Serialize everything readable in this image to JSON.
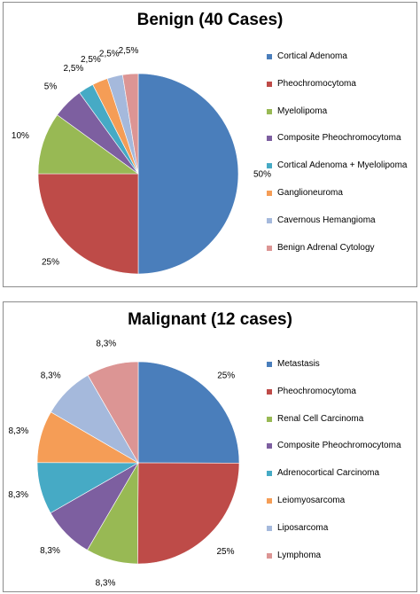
{
  "colors": {
    "blue": "#4a7ebb",
    "red": "#be4b48",
    "green": "#98b954",
    "purple": "#7d5fa0",
    "teal": "#46aac5",
    "orange": "#f59d56",
    "lightblue": "#a5b9dc",
    "pink": "#dc9594"
  },
  "chart_data": [
    {
      "type": "pie",
      "title": "Benign (40 Cases)",
      "legend_position": "right",
      "categories": [
        "Cortical Adenoma",
        "Pheochromocytoma",
        "Myelolipoma",
        "Composite Pheochromocytoma",
        "Cortical Adenoma + Myelolipoma",
        "Ganglioneuroma",
        "Cavernous Hemangioma",
        "Benign Adrenal Cytology"
      ],
      "values": [
        50,
        25,
        10,
        5,
        2.5,
        2.5,
        2.5,
        2.5
      ],
      "labels": [
        "50%",
        "25%",
        "10%",
        "5%",
        "2,5%",
        "2,5%",
        "2,5%",
        "2,5%"
      ],
      "colors": [
        "#4a7ebb",
        "#be4b48",
        "#98b954",
        "#7d5fa0",
        "#46aac5",
        "#f59d56",
        "#a5b9dc",
        "#dc9594"
      ]
    },
    {
      "type": "pie",
      "title": "Malignant (12 cases)",
      "legend_position": "right",
      "categories": [
        "Metastasis",
        "Pheochromocytoma",
        "Renal Cell Carcinoma",
        "Composite Pheochromocytoma",
        "Adrenocortical Carcinoma",
        "Leiomyosarcoma",
        "Liposarcoma",
        "Lymphoma"
      ],
      "values": [
        25,
        25,
        8.3,
        8.3,
        8.3,
        8.3,
        8.3,
        8.3
      ],
      "labels": [
        "25%",
        "25%",
        "8,3%",
        "8,3%",
        "8,3%",
        "8,3%",
        "8,3%",
        "8,3%"
      ],
      "colors": [
        "#4a7ebb",
        "#be4b48",
        "#98b954",
        "#7d5fa0",
        "#46aac5",
        "#f59d56",
        "#a5b9dc",
        "#dc9594"
      ]
    }
  ]
}
